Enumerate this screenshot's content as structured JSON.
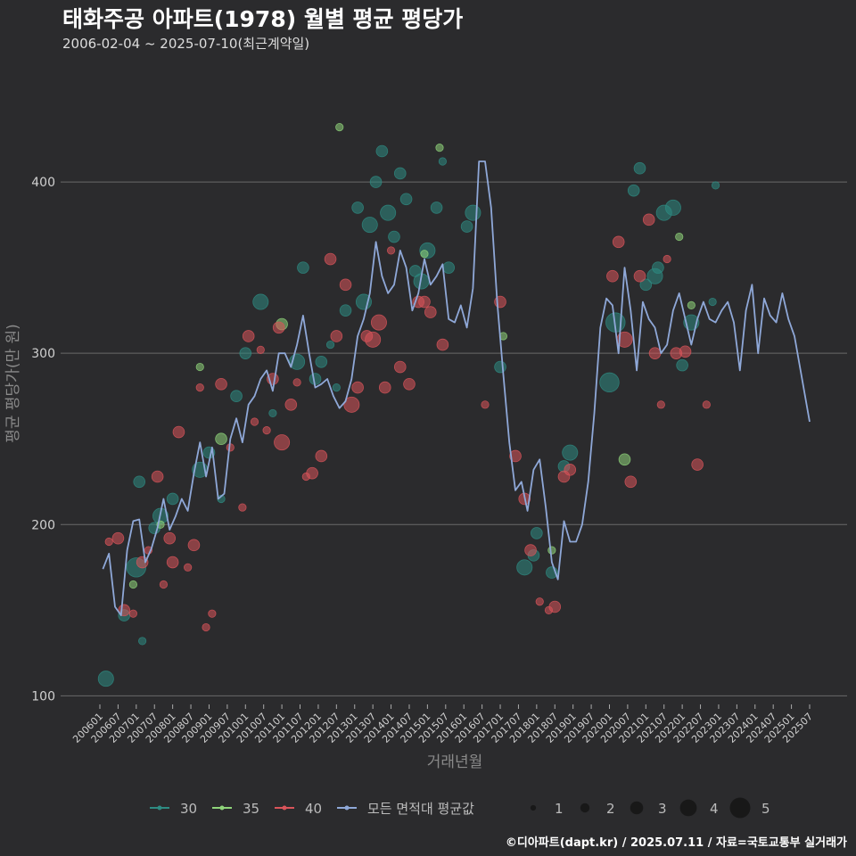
{
  "title": "태화주공 아파트(1978) 월별 평균 평당가",
  "subtitle": "2006-02-04 ~ 2025-07-10(최근계약일)",
  "footer": "©디아파트(dapt.kr) / 2025.07.11 / 자료=국토교통부 실거래가",
  "colors": {
    "background": "#2b2b2d",
    "grid": "#6a6a6a",
    "area30": "#2e8b82",
    "area35": "#8fd47a",
    "area40": "#d9545a",
    "avg": "#8fa8d8"
  },
  "chart_data": {
    "type": "line",
    "title": "태화주공 아파트(1978) 월별 평균 평당가",
    "xlabel": "거래년월",
    "ylabel": "평균 평당가(만 원)",
    "ylim": [
      95,
      475
    ],
    "yticks": [
      100,
      200,
      300,
      400
    ],
    "grid": true,
    "xlim": [
      200601,
      202507
    ],
    "xticks": [
      "200601",
      "200607",
      "200701",
      "200707",
      "200801",
      "200807",
      "200901",
      "200907",
      "201001",
      "201007",
      "201101",
      "201107",
      "201201",
      "201207",
      "201301",
      "201307",
      "201401",
      "201407",
      "201501",
      "201507",
      "201601",
      "201607",
      "201701",
      "201707",
      "201801",
      "201807",
      "201901",
      "201907",
      "202001",
      "202007",
      "202101",
      "202107",
      "202201",
      "202207",
      "202301",
      "202307",
      "202401",
      "202407",
      "202501",
      "202507"
    ],
    "legend": {
      "position": "bottom",
      "color_entries": [
        {
          "label": "30",
          "color": "#2e8b82"
        },
        {
          "label": "35",
          "color": "#8fd47a"
        },
        {
          "label": "40",
          "color": "#d9545a"
        },
        {
          "label": "모든 면적대 평균값",
          "color": "#8fa8d8"
        }
      ],
      "size_entries": [
        "1",
        "2",
        "3",
        "4",
        "5"
      ]
    },
    "average_line": {
      "name": "모든 면적대 평균값",
      "points": [
        [
          "200602",
          174
        ],
        [
          "200604",
          183
        ],
        [
          "200606",
          152
        ],
        [
          "200608",
          147
        ],
        [
          "200610",
          185
        ],
        [
          "200612",
          202
        ],
        [
          "200702",
          203
        ],
        [
          "200704",
          178
        ],
        [
          "200706",
          186
        ],
        [
          "200708",
          198
        ],
        [
          "200710",
          215
        ],
        [
          "200712",
          197
        ],
        [
          "200802",
          205
        ],
        [
          "200804",
          215
        ],
        [
          "200806",
          208
        ],
        [
          "200808",
          230
        ],
        [
          "200810",
          248
        ],
        [
          "200812",
          228
        ],
        [
          "200902",
          245
        ],
        [
          "200904",
          215
        ],
        [
          "200906",
          218
        ],
        [
          "200908",
          250
        ],
        [
          "200910",
          262
        ],
        [
          "200912",
          248
        ],
        [
          "201002",
          270
        ],
        [
          "201004",
          275
        ],
        [
          "201006",
          285
        ],
        [
          "201008",
          290
        ],
        [
          "201010",
          278
        ],
        [
          "201012",
          300
        ],
        [
          "201102",
          300
        ],
        [
          "201104",
          292
        ],
        [
          "201106",
          305
        ],
        [
          "201108",
          322
        ],
        [
          "201110",
          300
        ],
        [
          "201112",
          280
        ],
        [
          "201202",
          282
        ],
        [
          "201204",
          285
        ],
        [
          "201206",
          275
        ],
        [
          "201208",
          268
        ],
        [
          "201210",
          272
        ],
        [
          "201212",
          285
        ],
        [
          "201302",
          310
        ],
        [
          "201304",
          320
        ],
        [
          "201306",
          335
        ],
        [
          "201308",
          365
        ],
        [
          "201310",
          345
        ],
        [
          "201312",
          335
        ],
        [
          "201402",
          340
        ],
        [
          "201404",
          360
        ],
        [
          "201406",
          350
        ],
        [
          "201408",
          325
        ],
        [
          "201410",
          335
        ],
        [
          "201412",
          355
        ],
        [
          "201502",
          340
        ],
        [
          "201504",
          345
        ],
        [
          "201506",
          352
        ],
        [
          "201508",
          320
        ],
        [
          "201510",
          318
        ],
        [
          "201512",
          328
        ],
        [
          "201602",
          315
        ],
        [
          "201604",
          338
        ],
        [
          "201606",
          412
        ],
        [
          "201608",
          412
        ],
        [
          "201610",
          385
        ],
        [
          "201612",
          330
        ],
        [
          "201702",
          288
        ],
        [
          "201704",
          248
        ],
        [
          "201706",
          220
        ],
        [
          "201708",
          225
        ],
        [
          "201710",
          208
        ],
        [
          "201712",
          232
        ],
        [
          "201802",
          238
        ],
        [
          "201804",
          210
        ],
        [
          "201806",
          178
        ],
        [
          "201808",
          168
        ],
        [
          "201810",
          202
        ],
        [
          "201812",
          190
        ],
        [
          "201902",
          190
        ],
        [
          "201904",
          200
        ],
        [
          "201906",
          225
        ],
        [
          "201908",
          265
        ],
        [
          "201910",
          315
        ],
        [
          "201912",
          332
        ],
        [
          "202002",
          328
        ],
        [
          "202004",
          300
        ],
        [
          "202006",
          350
        ],
        [
          "202008",
          325
        ],
        [
          "202010",
          290
        ],
        [
          "202012",
          330
        ],
        [
          "202102",
          320
        ],
        [
          "202104",
          315
        ],
        [
          "202106",
          300
        ],
        [
          "202108",
          305
        ],
        [
          "202110",
          325
        ],
        [
          "202112",
          335
        ],
        [
          "202202",
          320
        ],
        [
          "202204",
          305
        ],
        [
          "202206",
          320
        ],
        [
          "202208",
          330
        ],
        [
          "202210",
          320
        ],
        [
          "202212",
          318
        ],
        [
          "202302",
          325
        ],
        [
          "202304",
          330
        ],
        [
          "202306",
          318
        ],
        [
          "202308",
          290
        ],
        [
          "202310",
          325
        ],
        [
          "202312",
          340
        ],
        [
          "202402",
          300
        ],
        [
          "202404",
          332
        ],
        [
          "202406",
          322
        ],
        [
          "202408",
          318
        ],
        [
          "202410",
          335
        ],
        [
          "202412",
          320
        ],
        [
          "202502",
          310
        ],
        [
          "202504",
          290
        ],
        [
          "202506",
          270
        ],
        [
          "202507",
          260
        ]
      ]
    },
    "scatter_series": [
      {
        "name": "30",
        "points": [
          [
            "200603",
            110,
            3
          ],
          [
            "200609",
            147,
            2
          ],
          [
            "200701",
            175,
            4
          ],
          [
            "200702",
            225,
            2
          ],
          [
            "200703",
            132,
            1
          ],
          [
            "200707",
            198,
            2
          ],
          [
            "200709",
            205,
            3
          ],
          [
            "200801",
            215,
            2
          ],
          [
            "200810",
            232,
            3
          ],
          [
            "200901",
            242,
            2
          ],
          [
            "200905",
            215,
            1
          ],
          [
            "200910",
            275,
            2
          ],
          [
            "201001",
            300,
            2
          ],
          [
            "201006",
            330,
            3
          ],
          [
            "201010",
            265,
            1
          ],
          [
            "201106",
            295,
            3
          ],
          [
            "201108",
            350,
            2
          ],
          [
            "201112",
            285,
            2
          ],
          [
            "201202",
            295,
            2
          ],
          [
            "201205",
            305,
            1
          ],
          [
            "201207",
            280,
            1
          ],
          [
            "201210",
            325,
            2
          ],
          [
            "201302",
            385,
            2
          ],
          [
            "201304",
            330,
            3
          ],
          [
            "201306",
            375,
            3
          ],
          [
            "201308",
            400,
            2
          ],
          [
            "201310",
            418,
            2
          ],
          [
            "201312",
            382,
            3
          ],
          [
            "201402",
            368,
            2
          ],
          [
            "201404",
            405,
            2
          ],
          [
            "201406",
            390,
            2
          ],
          [
            "201409",
            348,
            2
          ],
          [
            "201411",
            342,
            3
          ],
          [
            "201501",
            360,
            3
          ],
          [
            "201504",
            385,
            2
          ],
          [
            "201506",
            412,
            1
          ],
          [
            "201508",
            350,
            2
          ],
          [
            "201602",
            374,
            2
          ],
          [
            "201604",
            382,
            3
          ],
          [
            "201701",
            292,
            2
          ],
          [
            "201709",
            175,
            3
          ],
          [
            "201712",
            182,
            2
          ],
          [
            "201801",
            195,
            2
          ],
          [
            "201806",
            172,
            2
          ],
          [
            "201810",
            234,
            2
          ],
          [
            "201812",
            242,
            3
          ],
          [
            "202001",
            283,
            4
          ],
          [
            "202003",
            318,
            4
          ],
          [
            "202009",
            395,
            2
          ],
          [
            "202011",
            408,
            2
          ],
          [
            "202101",
            340,
            2
          ],
          [
            "202104",
            345,
            3
          ],
          [
            "202105",
            350,
            2
          ],
          [
            "202107",
            382,
            3
          ],
          [
            "202110",
            385,
            3
          ],
          [
            "202201",
            293,
            2
          ],
          [
            "202204",
            318,
            3
          ],
          [
            "202211",
            330,
            1
          ],
          [
            "202212",
            398,
            1
          ]
        ]
      },
      {
        "name": "35",
        "points": [
          [
            "200612",
            165,
            1
          ],
          [
            "200709",
            200,
            1
          ],
          [
            "200810",
            292,
            1
          ],
          [
            "200905",
            250,
            2
          ],
          [
            "201101",
            317,
            2
          ],
          [
            "201208",
            432,
            1
          ],
          [
            "201412",
            358,
            1
          ],
          [
            "201505",
            420,
            1
          ],
          [
            "201702",
            310,
            1
          ],
          [
            "201806",
            185,
            1
          ],
          [
            "202006",
            238,
            2
          ],
          [
            "202112",
            368,
            1
          ],
          [
            "202204",
            328,
            1
          ]
        ]
      },
      {
        "name": "40",
        "points": [
          [
            "200604",
            190,
            1
          ],
          [
            "200607",
            192,
            2
          ],
          [
            "200609",
            150,
            2
          ],
          [
            "200612",
            148,
            1
          ],
          [
            "200703",
            178,
            2
          ],
          [
            "200705",
            185,
            1
          ],
          [
            "200708",
            228,
            2
          ],
          [
            "200710",
            165,
            1
          ],
          [
            "200712",
            192,
            2
          ],
          [
            "200801",
            178,
            2
          ],
          [
            "200803",
            254,
            2
          ],
          [
            "200806",
            175,
            1
          ],
          [
            "200808",
            188,
            2
          ],
          [
            "200810",
            280,
            1
          ],
          [
            "200812",
            140,
            1
          ],
          [
            "200902",
            148,
            1
          ],
          [
            "200905",
            282,
            2
          ],
          [
            "200908",
            245,
            1
          ],
          [
            "200912",
            210,
            1
          ],
          [
            "201002",
            310,
            2
          ],
          [
            "201004",
            260,
            1
          ],
          [
            "201006",
            302,
            1
          ],
          [
            "201008",
            255,
            1
          ],
          [
            "201010",
            285,
            2
          ],
          [
            "201012",
            315,
            2
          ],
          [
            "201101",
            248,
            3
          ],
          [
            "201104",
            270,
            2
          ],
          [
            "201106",
            283,
            1
          ],
          [
            "201109",
            228,
            1
          ],
          [
            "201111",
            230,
            2
          ],
          [
            "201202",
            240,
            2
          ],
          [
            "201205",
            355,
            2
          ],
          [
            "201207",
            310,
            2
          ],
          [
            "201210",
            340,
            2
          ],
          [
            "201212",
            270,
            3
          ],
          [
            "201302",
            280,
            2
          ],
          [
            "201305",
            310,
            2
          ],
          [
            "201307",
            308,
            3
          ],
          [
            "201309",
            318,
            3
          ],
          [
            "201311",
            280,
            2
          ],
          [
            "201401",
            360,
            1
          ],
          [
            "201404",
            292,
            2
          ],
          [
            "201407",
            282,
            2
          ],
          [
            "201410",
            330,
            2
          ],
          [
            "201412",
            330,
            2
          ],
          [
            "201502",
            324,
            2
          ],
          [
            "201506",
            305,
            2
          ],
          [
            "201608",
            270,
            1
          ],
          [
            "201701",
            330,
            2
          ],
          [
            "201706",
            240,
            2
          ],
          [
            "201709",
            215,
            2
          ],
          [
            "201711",
            185,
            2
          ],
          [
            "201802",
            155,
            1
          ],
          [
            "201805",
            150,
            1
          ],
          [
            "201807",
            152,
            2
          ],
          [
            "201810",
            228,
            2
          ],
          [
            "201812",
            232,
            2
          ],
          [
            "202002",
            345,
            2
          ],
          [
            "202004",
            365,
            2
          ],
          [
            "202006",
            308,
            3
          ],
          [
            "202008",
            225,
            2
          ],
          [
            "202011",
            345,
            2
          ],
          [
            "202102",
            378,
            2
          ],
          [
            "202104",
            300,
            2
          ],
          [
            "202106",
            270,
            1
          ],
          [
            "202108",
            355,
            1
          ],
          [
            "202111",
            300,
            2
          ],
          [
            "202202",
            301,
            2
          ],
          [
            "202206",
            235,
            2
          ],
          [
            "202209",
            270,
            1
          ]
        ]
      }
    ]
  }
}
